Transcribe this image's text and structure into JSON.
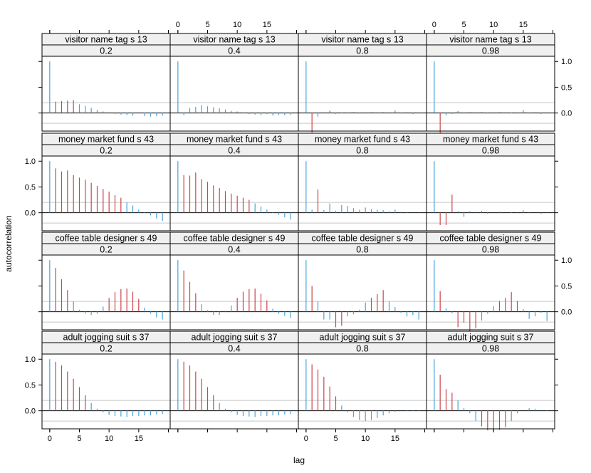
{
  "chart_data": {
    "type": "bar",
    "xlabel": "lag",
    "ylabel": "autocorrelation",
    "xlim": [
      -1.3,
      20.3
    ],
    "ylim": [
      -0.35,
      1.1
    ],
    "x_ticks": [
      0,
      5,
      10,
      15
    ],
    "y_ticks": [
      0.0,
      0.5,
      1.0
    ],
    "y_tick_labels": [
      "0.0",
      "0.5",
      "1.0"
    ],
    "reference_bands": [
      0.2,
      -0.2
    ],
    "grid": false,
    "colors": {
      "significant": "#c9454b",
      "insignificant": "#46a3dc",
      "band": "#c8c8c8",
      "strip": "#f0f0f0",
      "frame": "#000000"
    },
    "columns": [
      "0.2",
      "0.4",
      "0.8",
      "0.98"
    ],
    "rows": [
      "visitor name tag s 13",
      "money market fund s 43",
      "coffee table designer s 49",
      "adult jogging suit s 37"
    ],
    "panels": [
      [
        {
          "lag": [
            0,
            1,
            2,
            3,
            4,
            5,
            6,
            7,
            8,
            9,
            10,
            11,
            12,
            13,
            14,
            15,
            16,
            17,
            18,
            19
          ],
          "values": [
            1.0,
            0.22,
            0.23,
            0.24,
            0.25,
            0.17,
            0.14,
            0.1,
            0.06,
            0.03,
            0.0,
            -0.02,
            -0.03,
            -0.04,
            -0.05,
            0.0,
            -0.06,
            -0.07,
            -0.06,
            -0.05
          ]
        },
        {
          "lag": [
            0,
            1,
            2,
            3,
            4,
            5,
            6,
            7,
            8,
            9,
            10,
            11,
            12,
            13,
            14,
            15,
            16,
            17,
            18,
            19
          ],
          "values": [
            1.0,
            -0.04,
            0.1,
            0.12,
            0.15,
            0.13,
            0.11,
            0.09,
            0.07,
            0.04,
            0.03,
            0.01,
            -0.02,
            -0.03,
            -0.04,
            -0.02,
            -0.05,
            -0.04,
            -0.04,
            -0.03
          ]
        },
        {
          "lag": [
            0,
            1,
            2,
            3,
            4,
            5,
            6,
            7,
            8,
            9,
            10,
            11,
            12,
            13,
            14,
            15,
            16,
            17,
            18,
            19
          ],
          "values": [
            1.0,
            -0.38,
            -0.07,
            0.0,
            0.05,
            -0.02,
            0.01,
            0.01,
            0.02,
            -0.01,
            -0.01,
            0.02,
            0.0,
            0.02,
            -0.01,
            0.05,
            -0.01,
            0.0,
            -0.02,
            -0.01
          ]
        },
        {
          "lag": [
            0,
            1,
            2,
            3,
            4,
            5,
            6,
            7,
            8,
            9,
            10,
            11,
            12,
            13,
            14,
            15,
            16,
            17,
            18,
            19
          ],
          "values": [
            1.0,
            -0.4,
            -0.05,
            -0.02,
            0.04,
            -0.01,
            0.02,
            0.0,
            0.02,
            -0.01,
            -0.01,
            0.02,
            0.0,
            0.01,
            -0.01,
            0.06,
            -0.01,
            0.0,
            -0.02,
            -0.01
          ]
        }
      ],
      [
        {
          "lag": [
            0,
            1,
            2,
            3,
            4,
            5,
            6,
            7,
            8,
            9,
            10,
            11,
            12,
            13,
            14,
            15,
            16,
            17,
            18,
            19
          ],
          "values": [
            1.0,
            0.86,
            0.8,
            0.82,
            0.73,
            0.68,
            0.64,
            0.58,
            0.52,
            0.46,
            0.41,
            0.34,
            0.29,
            0.2,
            0.14,
            0.06,
            0.01,
            -0.05,
            -0.11,
            -0.16
          ]
        },
        {
          "lag": [
            0,
            1,
            2,
            3,
            4,
            5,
            6,
            7,
            8,
            9,
            10,
            11,
            12,
            13,
            14,
            15,
            16,
            17,
            18,
            19
          ],
          "values": [
            1.0,
            0.73,
            0.72,
            0.78,
            0.65,
            0.6,
            0.53,
            0.48,
            0.42,
            0.37,
            0.33,
            0.29,
            0.25,
            0.18,
            0.12,
            0.06,
            0.01,
            -0.04,
            -0.09,
            -0.13
          ]
        },
        {
          "lag": [
            0,
            1,
            2,
            3,
            4,
            5,
            6,
            7,
            8,
            9,
            10,
            11,
            12,
            13,
            14,
            15,
            16,
            17,
            18,
            19
          ],
          "values": [
            1.0,
            0.06,
            0.45,
            0.05,
            0.18,
            0.04,
            0.15,
            0.13,
            0.09,
            0.06,
            0.1,
            0.07,
            0.06,
            0.05,
            0.03,
            0.06,
            0.02,
            0.01,
            0.0,
            -0.01
          ]
        },
        {
          "lag": [
            0,
            1,
            2,
            3,
            4,
            5,
            6,
            7,
            8,
            9,
            10,
            11,
            12,
            13,
            14,
            15,
            16,
            17,
            18,
            19
          ],
          "values": [
            1.0,
            -0.24,
            -0.24,
            0.35,
            0.03,
            -0.08,
            0.03,
            0.02,
            0.04,
            -0.02,
            0.0,
            0.02,
            0.0,
            0.01,
            -0.01,
            0.05,
            -0.01,
            0.0,
            -0.02,
            -0.01
          ]
        }
      ],
      [
        {
          "lag": [
            0,
            1,
            2,
            3,
            4,
            5,
            6,
            7,
            8,
            9,
            10,
            11,
            12,
            13,
            14,
            15,
            16,
            17,
            18,
            19
          ],
          "values": [
            1.0,
            0.85,
            0.63,
            0.42,
            0.2,
            0.04,
            -0.04,
            -0.06,
            -0.04,
            0.1,
            0.27,
            0.38,
            0.44,
            0.45,
            0.39,
            0.25,
            0.08,
            -0.04,
            -0.11,
            -0.15
          ]
        },
        {
          "lag": [
            0,
            1,
            2,
            3,
            4,
            5,
            6,
            7,
            8,
            9,
            10,
            11,
            12,
            13,
            14,
            15,
            16,
            17,
            18,
            19
          ],
          "values": [
            1.0,
            0.8,
            0.58,
            0.36,
            0.15,
            0.03,
            -0.06,
            -0.06,
            0.02,
            0.12,
            0.27,
            0.39,
            0.44,
            0.45,
            0.35,
            0.22,
            0.06,
            -0.04,
            -0.08,
            -0.12
          ]
        },
        {
          "lag": [
            0,
            1,
            2,
            3,
            4,
            5,
            6,
            7,
            8,
            9,
            10,
            11,
            12,
            13,
            14,
            15,
            16,
            17,
            18,
            19
          ],
          "values": [
            1.0,
            0.5,
            0.2,
            -0.15,
            -0.15,
            -0.3,
            -0.27,
            -0.09,
            -0.05,
            0.04,
            0.18,
            0.27,
            0.34,
            0.42,
            0.2,
            0.09,
            -0.02,
            -0.09,
            -0.06,
            -0.15
          ]
        },
        {
          "lag": [
            0,
            1,
            2,
            3,
            4,
            5,
            6,
            7,
            8,
            9,
            10,
            11,
            12,
            13,
            14,
            15,
            16,
            17,
            18,
            19
          ],
          "values": [
            1.0,
            0.4,
            0.07,
            -0.03,
            -0.3,
            -0.21,
            -0.38,
            -0.32,
            -0.17,
            -0.04,
            0.11,
            0.21,
            0.27,
            0.38,
            0.21,
            0.05,
            -0.14,
            -0.09,
            -0.02,
            -0.18
          ]
        }
      ],
      [
        {
          "lag": [
            0,
            1,
            2,
            3,
            4,
            5,
            6,
            7,
            8,
            9,
            10,
            11,
            12,
            13,
            14,
            15,
            16,
            17,
            18,
            19
          ],
          "values": [
            1.0,
            0.95,
            0.88,
            0.76,
            0.62,
            0.46,
            0.3,
            0.15,
            0.04,
            -0.03,
            -0.08,
            -0.1,
            -0.11,
            -0.12,
            -0.1,
            -0.1,
            -0.09,
            -0.09,
            -0.07,
            -0.06
          ]
        },
        {
          "lag": [
            0,
            1,
            2,
            3,
            4,
            5,
            6,
            7,
            8,
            9,
            10,
            11,
            12,
            13,
            14,
            15,
            16,
            17,
            18,
            19
          ],
          "values": [
            1.0,
            0.95,
            0.88,
            0.76,
            0.62,
            0.46,
            0.3,
            0.15,
            0.04,
            -0.03,
            -0.08,
            -0.1,
            -0.11,
            -0.12,
            -0.1,
            -0.1,
            -0.09,
            -0.09,
            -0.07,
            -0.06
          ]
        },
        {
          "lag": [
            0,
            1,
            2,
            3,
            4,
            5,
            6,
            7,
            8,
            9,
            10,
            11,
            12,
            13,
            14,
            15,
            16,
            17,
            18,
            19
          ],
          "values": [
            1.0,
            0.9,
            0.8,
            0.66,
            0.47,
            0.28,
            0.1,
            -0.03,
            -0.12,
            -0.18,
            -0.2,
            -0.18,
            -0.14,
            -0.09,
            -0.05,
            -0.02,
            0.0,
            0.01,
            0.01,
            0.01
          ]
        },
        {
          "lag": [
            0,
            1,
            2,
            3,
            4,
            5,
            6,
            7,
            8,
            9,
            10,
            11,
            12,
            13,
            14,
            15,
            16,
            17,
            18,
            19
          ],
          "values": [
            1.0,
            0.7,
            0.42,
            0.35,
            0.2,
            0.05,
            -0.05,
            -0.2,
            -0.3,
            -0.38,
            -0.4,
            -0.37,
            -0.32,
            -0.2,
            -0.05,
            0.02,
            0.05,
            0.04,
            0.02,
            0.01
          ]
        }
      ]
    ]
  }
}
